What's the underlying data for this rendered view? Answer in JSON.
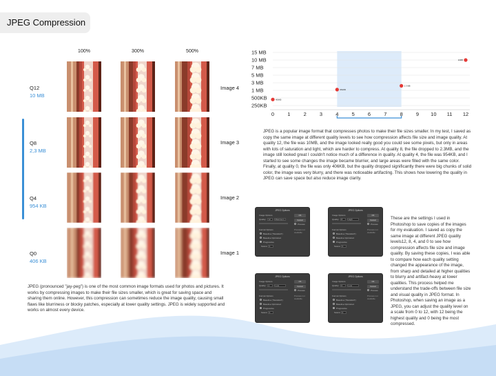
{
  "title": "JPEG Compression",
  "columns": [
    "100%",
    "300%",
    "500%"
  ],
  "rows": [
    {
      "quality": "Q12",
      "size": "10 MB",
      "image_label": "Image 4"
    },
    {
      "quality": "Q8",
      "size": "2,3 MB",
      "image_label": "Image 3"
    },
    {
      "quality": "Q4",
      "size": "954 KB",
      "image_label": "Image 2"
    },
    {
      "quality": "Q0",
      "size": "406 KB",
      "image_label": "Image 1"
    }
  ],
  "chart_data": {
    "type": "scatter",
    "x_ticks": [
      "0",
      "1",
      "2",
      "3",
      "4",
      "5",
      "6",
      "7",
      "8",
      "9",
      "10",
      "11",
      "12"
    ],
    "y_ticks": [
      "15 MB",
      "10 MB",
      "7 MB",
      "5 MB",
      "3 MB",
      "1 MB",
      "500KB",
      "250KB"
    ],
    "points": [
      {
        "x": 0,
        "label": "406KB",
        "y_tick_index": 6.2
      },
      {
        "x": 4,
        "label": "954KB",
        "y_tick_index": 4.9
      },
      {
        "x": 8,
        "label": "2.3 MB",
        "y_tick_index": 4.4
      },
      {
        "x": 12,
        "label": "10MB",
        "y_tick_index": 1
      }
    ],
    "highlight_range": [
      4,
      8
    ],
    "point_color": "#e53935",
    "highlight_color": "#ddebfa",
    "bracket_color": "#3a8fd6",
    "grid": true
  },
  "para_chart": "JPEG is a popular image format that compresses photos to make their file sizes smaller. In my test, I saved as copy the same image at different quality levels to see how compression affects file size and image quality. At quality 12, the file was 10MB, and the image looked really good you could see some pixels, but only in areas with lots of saturation and light, which are harder to compress. At quality 8, the file dropped to 2.3MB, and the image still looked great I couldn't notice much of a difference in quality. At quality 4, the file was 954KB, and I started to see some changes the image became blurrier, and large areas were filled with the same color. Finally, at quality 0, the file was only 406KB, but the quality dropped significantly there were big chunks of solid color, the image was very blurry, and there was noticeable artifacting. This shows how lowering the quality in JPEG can save space but also reduce image clarity.",
  "para_intro": "JPEG (pronounced \"jay-peg\") is one of the most common image formats used for photos and pictures. It works by compressing images to make their file sizes smaller, which is great for saving space and sharing them online. However, this compression can sometimes reduce the image quality, causing small flaws like blurriness or blocky patches, especially at lower quality settings. JPEG is widely supported and works on almost every device.",
  "para_settings": "These are the settings I used in Photoshop to save copies of the images for my evaluation. I saved as copy the same image at different JPEG quality levels12, 8, 4, and 0 to see how compression affects file size and image quality. By saving these copies, I was able to compare how each quality setting changed the appearance of the image, from sharp and detailed at higher qualities to blurry and artifact-heavy at lower qualities. This process helped me understand the trade-offs between file size and visual quality in JPEG format. In Photoshop, when saving an image as a JPEG, you can adjust the quality level on a scale from 0 to 12, with 12 being the highest quality and 0 being the most compressed.",
  "dialog": {
    "title": "JPEG Options",
    "ok": "OK",
    "cancel": "Cancel",
    "preview": "Preview",
    "image_options": "Image Options",
    "quality_label": "Quality:",
    "format_options": "Format Options",
    "opt_baseline_std": "Baseline (\"Standard\")",
    "opt_baseline_opt": "Baseline Optimized",
    "opt_progressive": "Progressive",
    "scans": "Scans:",
    "scans_value": "3",
    "side_note": "Preview not available",
    "settings": [
      {
        "quality": "12",
        "level": "Maximum"
      },
      {
        "quality": "8",
        "level": "High"
      },
      {
        "quality": "4",
        "level": "Low"
      },
      {
        "quality": "0",
        "level": "Low"
      }
    ]
  },
  "colors": {
    "accent": "#3a8fd6",
    "wave": "#cfe3f7"
  }
}
